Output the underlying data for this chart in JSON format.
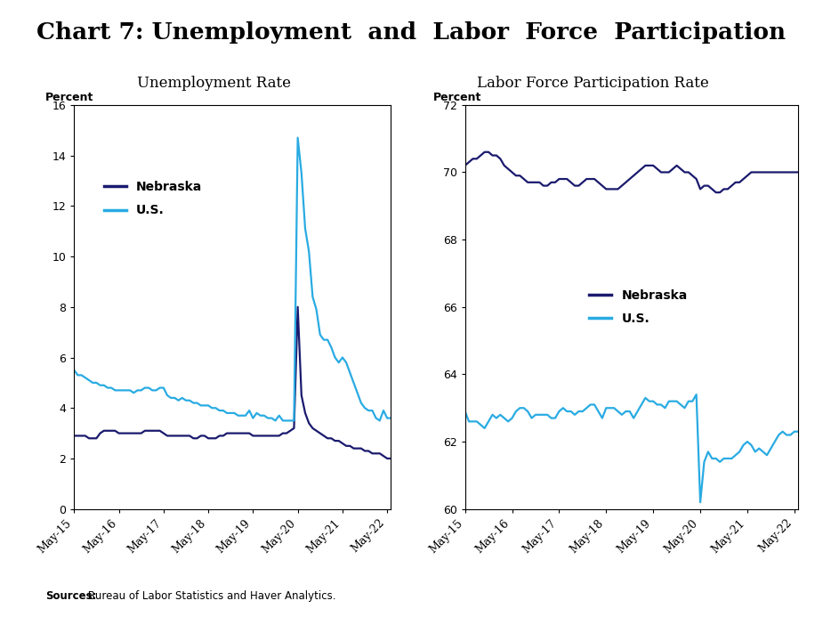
{
  "title": "Chart 7: Unemployment  and  Labor  Force  Participation",
  "subtitle_left": "Unemployment Rate",
  "subtitle_right": "Labor Force Participation Rate",
  "source_text_bold": "Sources:",
  "source_text_normal": " Bureau of Labor Statistics and Haver Analytics.",
  "nebraska_color": "#1a1a6e",
  "us_color": "#29abe2",
  "left_ylim": [
    0,
    16
  ],
  "right_ylim": [
    60,
    72
  ],
  "left_yticks": [
    0,
    2,
    4,
    6,
    8,
    10,
    12,
    14,
    16
  ],
  "right_yticks": [
    60,
    62,
    64,
    66,
    68,
    70,
    72
  ],
  "x_tick_labels": [
    "May-15",
    "May-16",
    "May-17",
    "May-18",
    "May-19",
    "May-20",
    "May-21",
    "May-22"
  ],
  "unemployment_nebraska": [
    2.9,
    2.9,
    2.9,
    2.9,
    2.8,
    2.8,
    2.8,
    3.0,
    3.1,
    3.1,
    3.1,
    3.1,
    3.0,
    3.0,
    3.0,
    3.0,
    3.0,
    3.0,
    3.0,
    3.1,
    3.1,
    3.1,
    3.1,
    3.1,
    3.0,
    2.9,
    2.9,
    2.9,
    2.9,
    2.9,
    2.9,
    2.9,
    2.8,
    2.8,
    2.9,
    2.9,
    2.8,
    2.8,
    2.8,
    2.9,
    2.9,
    3.0,
    3.0,
    3.0,
    3.0,
    3.0,
    3.0,
    3.0,
    2.9,
    2.9,
    2.9,
    2.9,
    2.9,
    2.9,
    2.9,
    2.9,
    3.0,
    3.0,
    3.1,
    3.2,
    8.0,
    4.5,
    3.8,
    3.4,
    3.2,
    3.1,
    3.0,
    2.9,
    2.8,
    2.8,
    2.7,
    2.7,
    2.6,
    2.5,
    2.5,
    2.4,
    2.4,
    2.4,
    2.3,
    2.3,
    2.2,
    2.2,
    2.2,
    2.1,
    2.0,
    2.0
  ],
  "unemployment_us": [
    5.5,
    5.3,
    5.3,
    5.2,
    5.1,
    5.0,
    5.0,
    4.9,
    4.9,
    4.8,
    4.8,
    4.7,
    4.7,
    4.7,
    4.7,
    4.7,
    4.6,
    4.7,
    4.7,
    4.8,
    4.8,
    4.7,
    4.7,
    4.8,
    4.8,
    4.5,
    4.4,
    4.4,
    4.3,
    4.4,
    4.3,
    4.3,
    4.2,
    4.2,
    4.1,
    4.1,
    4.1,
    4.0,
    4.0,
    3.9,
    3.9,
    3.8,
    3.8,
    3.8,
    3.7,
    3.7,
    3.7,
    3.9,
    3.6,
    3.8,
    3.7,
    3.7,
    3.6,
    3.6,
    3.5,
    3.7,
    3.5,
    3.5,
    3.5,
    3.5,
    14.7,
    13.3,
    11.1,
    10.2,
    8.4,
    7.9,
    6.9,
    6.7,
    6.7,
    6.4,
    6.0,
    5.8,
    6.0,
    5.8,
    5.4,
    5.0,
    4.6,
    4.2,
    4.0,
    3.9,
    3.9,
    3.6,
    3.5,
    3.9,
    3.6,
    3.6
  ],
  "lfpr_nebraska": [
    70.2,
    70.3,
    70.4,
    70.4,
    70.5,
    70.6,
    70.6,
    70.5,
    70.5,
    70.4,
    70.2,
    70.1,
    70.0,
    69.9,
    69.9,
    69.8,
    69.7,
    69.7,
    69.7,
    69.7,
    69.6,
    69.6,
    69.7,
    69.7,
    69.8,
    69.8,
    69.8,
    69.7,
    69.6,
    69.6,
    69.7,
    69.8,
    69.8,
    69.8,
    69.7,
    69.6,
    69.5,
    69.5,
    69.5,
    69.5,
    69.6,
    69.7,
    69.8,
    69.9,
    70.0,
    70.1,
    70.2,
    70.2,
    70.2,
    70.1,
    70.0,
    70.0,
    70.0,
    70.1,
    70.2,
    70.1,
    70.0,
    70.0,
    69.9,
    69.8,
    69.5,
    69.6,
    69.6,
    69.5,
    69.4,
    69.4,
    69.5,
    69.5,
    69.6,
    69.7,
    69.7,
    69.8,
    69.9,
    70.0,
    70.0,
    70.0,
    70.0,
    70.0,
    70.0,
    70.0,
    70.0,
    70.0,
    70.0,
    70.0,
    70.0,
    70.0
  ],
  "lfpr_us": [
    62.9,
    62.6,
    62.6,
    62.6,
    62.5,
    62.4,
    62.6,
    62.8,
    62.7,
    62.8,
    62.7,
    62.6,
    62.7,
    62.9,
    63.0,
    63.0,
    62.9,
    62.7,
    62.8,
    62.8,
    62.8,
    62.8,
    62.7,
    62.7,
    62.9,
    63.0,
    62.9,
    62.9,
    62.8,
    62.9,
    62.9,
    63.0,
    63.1,
    63.1,
    62.9,
    62.7,
    63.0,
    63.0,
    63.0,
    62.9,
    62.8,
    62.9,
    62.9,
    62.7,
    62.9,
    63.1,
    63.3,
    63.2,
    63.2,
    63.1,
    63.1,
    63.0,
    63.2,
    63.2,
    63.2,
    63.1,
    63.0,
    63.2,
    63.2,
    63.4,
    60.2,
    61.4,
    61.7,
    61.5,
    61.5,
    61.4,
    61.5,
    61.5,
    61.5,
    61.6,
    61.7,
    61.9,
    62.0,
    61.9,
    61.7,
    61.8,
    61.7,
    61.6,
    61.8,
    62.0,
    62.2,
    62.3,
    62.2,
    62.2,
    62.3,
    62.3
  ]
}
